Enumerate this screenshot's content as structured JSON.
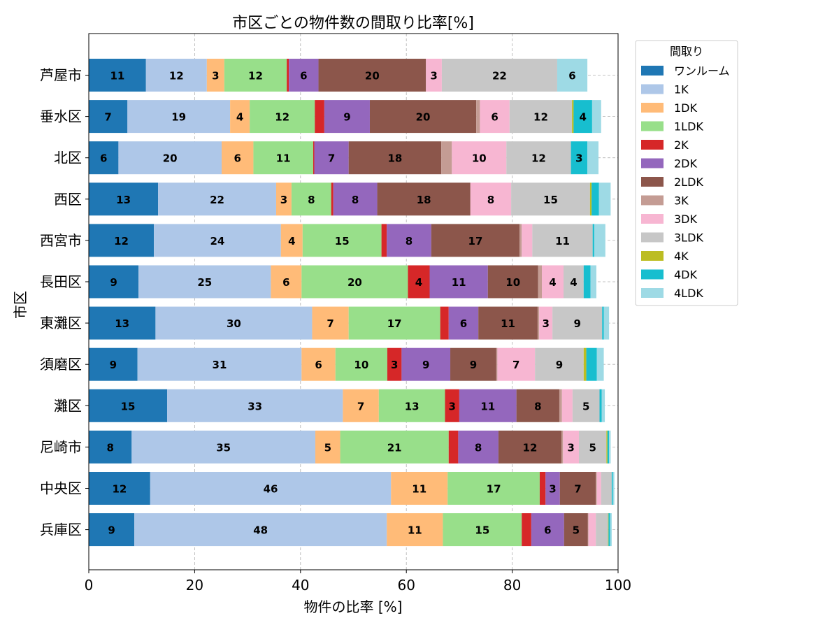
{
  "chart_data": {
    "type": "bar",
    "orientation": "horizontal",
    "stacked": true,
    "title": "市区ごとの物件数の間取り比率[%]",
    "xlabel": "物件の比率 [%]",
    "ylabel": "市区",
    "xlim": [
      0,
      100
    ],
    "xticks": [
      "0",
      "20",
      "40",
      "60",
      "80",
      "100"
    ],
    "grid": true,
    "legend_title": "間取り",
    "legend_position": "right",
    "categories": [
      "芦屋市",
      "垂水区",
      "北区",
      "西区",
      "西宮市",
      "長田区",
      "東灘区",
      "須磨区",
      "灘区",
      "尼崎市",
      "中央区",
      "兵庫区"
    ],
    "series": [
      {
        "name": "ワンルーム",
        "color": "#1f77b4",
        "values": [
          10.8,
          7.3,
          5.6,
          13.1,
          12.3,
          9.4,
          12.6,
          9.2,
          14.8,
          8.1,
          11.6,
          8.6
        ]
      },
      {
        "name": "1K",
        "color": "#aec7e8",
        "values": [
          11.5,
          19.4,
          19.5,
          22.3,
          24.0,
          25.0,
          29.6,
          31.0,
          33.2,
          34.7,
          45.5,
          47.7
        ]
      },
      {
        "name": "1DK",
        "color": "#ffbb78",
        "values": [
          3.3,
          3.7,
          6.0,
          2.9,
          4.1,
          5.8,
          6.9,
          6.4,
          6.8,
          4.7,
          10.7,
          10.6
        ]
      },
      {
        "name": "1LDK",
        "color": "#98df8a",
        "values": [
          11.8,
          12.3,
          11.3,
          7.5,
          14.9,
          20.1,
          17.3,
          9.8,
          12.5,
          20.5,
          17.4,
          14.9
        ]
      },
      {
        "name": "2K",
        "color": "#d62728",
        "values": [
          0.4,
          1.8,
          0.2,
          0.4,
          1.0,
          4.1,
          1.6,
          2.7,
          2.7,
          1.8,
          1.1,
          1.8
        ]
      },
      {
        "name": "2DK",
        "color": "#9467bd",
        "values": [
          5.6,
          8.6,
          6.5,
          8.3,
          8.4,
          11.0,
          5.6,
          9.2,
          10.8,
          7.6,
          2.7,
          6.2
        ]
      },
      {
        "name": "2LDK",
        "color": "#8c564b",
        "values": [
          20.3,
          20.1,
          17.5,
          17.6,
          16.7,
          9.5,
          11.2,
          8.7,
          8.1,
          11.9,
          6.8,
          4.5
        ]
      },
      {
        "name": "3K",
        "color": "#c49c94",
        "values": [
          0,
          0.7,
          2.0,
          0,
          0.4,
          0.7,
          0.3,
          0.2,
          0.5,
          0.3,
          0.2,
          0.1
        ]
      },
      {
        "name": "3DK",
        "color": "#f7b6d2",
        "values": [
          3.0,
          5.6,
          10.3,
          7.7,
          2.0,
          4.1,
          2.5,
          7.1,
          2.0,
          3.0,
          0.8,
          1.4
        ]
      },
      {
        "name": "3LDK",
        "color": "#c7c7c7",
        "values": [
          21.8,
          11.8,
          12.2,
          14.9,
          11.4,
          3.8,
          9.4,
          9.2,
          5.1,
          5.2,
          2.0,
          2.3
        ]
      },
      {
        "name": "4K",
        "color": "#bcbd22",
        "values": [
          0,
          0.3,
          0,
          0.3,
          0,
          0,
          0,
          0.5,
          0,
          0.2,
          0,
          0.1
        ]
      },
      {
        "name": "4DK",
        "color": "#17becf",
        "values": [
          0,
          3.5,
          3.1,
          1.4,
          0.3,
          1.3,
          0.3,
          2.0,
          0.4,
          0.3,
          0.2,
          0.3
        ]
      },
      {
        "name": "4LDK",
        "color": "#9edae5",
        "values": [
          5.7,
          1.7,
          2.1,
          2.2,
          2.1,
          1.1,
          1.0,
          1.3,
          0.6,
          0.3,
          0.3,
          0.3
        ]
      }
    ]
  }
}
